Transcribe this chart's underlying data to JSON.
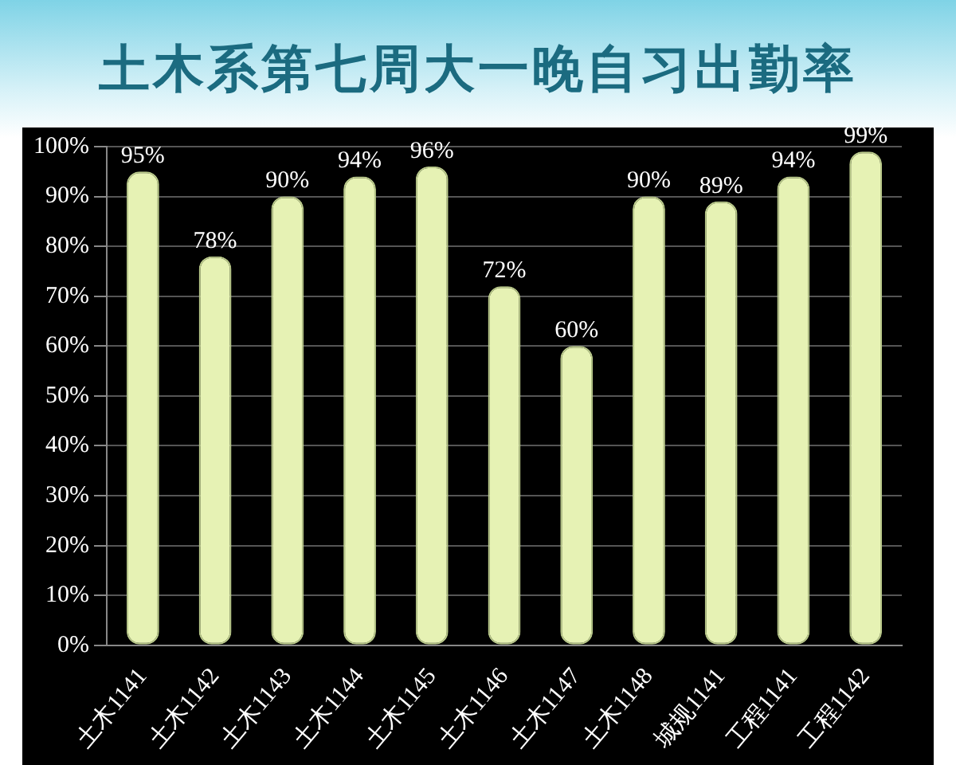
{
  "chart_data": {
    "type": "bar",
    "title": "土木系第七周大一晚自习出勤率",
    "categories": [
      "土木1141",
      "土木1142",
      "土木1143",
      "土木1144",
      "土木1145",
      "土木1146",
      "土木1147",
      "土木1148",
      "城规1141",
      "工程1141",
      "工程1142"
    ],
    "values": [
      95,
      78,
      90,
      94,
      96,
      72,
      60,
      90,
      89,
      94,
      99
    ],
    "value_labels": [
      "95%",
      "78%",
      "90%",
      "94%",
      "96%",
      "72%",
      "60%",
      "90%",
      "89%",
      "94%",
      "99%"
    ],
    "color": "#e6f2b4",
    "ylim": [
      0,
      100
    ],
    "yticks": [
      {
        "value": 0,
        "label": "0%"
      },
      {
        "value": 10,
        "label": "10%"
      },
      {
        "value": 20,
        "label": "20%"
      },
      {
        "value": 30,
        "label": "30%"
      },
      {
        "value": 40,
        "label": "40%"
      },
      {
        "value": 50,
        "label": "50%"
      },
      {
        "value": 60,
        "label": "60%"
      },
      {
        "value": 70,
        "label": "70%"
      },
      {
        "value": 80,
        "label": "80%"
      },
      {
        "value": 90,
        "label": "90%"
      },
      {
        "value": 100,
        "label": "100%"
      }
    ],
    "grid": "y",
    "legend": false
  }
}
